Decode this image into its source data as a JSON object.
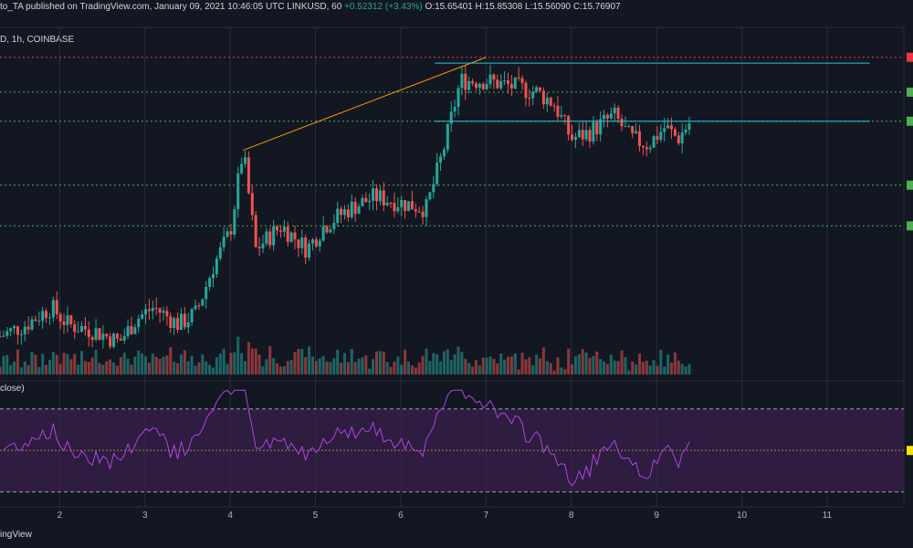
{
  "header": {
    "publish_text": "to_TA published on TradingView.com, January 09, 2021 10:46:05 UTC",
    "symbol": "LINKUSD, 60",
    "change": "+0.52312 (+3.43%)",
    "ohlc": {
      "o": "15.65401",
      "h": "15.85308",
      "l": "15.56090",
      "c": "15.76907"
    },
    "symbol_line": "D, 1h, COINBASE"
  },
  "rsi_label": "close)",
  "brand": "ingView",
  "colors": {
    "bg": "#131722",
    "up": "#26a69a",
    "down": "#ef5350",
    "grid": "#2a2e39",
    "green_level": "#4caf50",
    "red_level": "#f23645",
    "cyan": "#26c6da",
    "orange": "#ff9800",
    "rsi": "#b044e0",
    "rsi_band": "#3b1f4f"
  },
  "chart_data": {
    "type": "candlestick",
    "x_ticks": [
      "2",
      "3",
      "4",
      "5",
      "6",
      "7",
      "8",
      "9",
      "10",
      "11"
    ],
    "x_tick_days": [
      2,
      3,
      4,
      5,
      6,
      7,
      8,
      9,
      10,
      11
    ],
    "x_range": [
      1.3,
      11.9
    ],
    "price_ylim": [
      12.6,
      18.1
    ],
    "levels": [
      {
        "price": 17.9,
        "color": "red"
      },
      {
        "price": 17.3,
        "color": "green"
      },
      {
        "price": 16.8,
        "color": "green"
      },
      {
        "price": 15.7,
        "color": "green"
      },
      {
        "price": 15.0,
        "color": "green"
      }
    ],
    "key_prices": [
      [
        1.3,
        13.1
      ],
      [
        1.6,
        13.3
      ],
      [
        1.9,
        13.6
      ],
      [
        2.1,
        13.3
      ],
      [
        2.4,
        13.2
      ],
      [
        2.7,
        13.0
      ],
      [
        2.9,
        13.4
      ],
      [
        3.1,
        13.6
      ],
      [
        3.4,
        13.3
      ],
      [
        3.6,
        13.5
      ],
      [
        3.8,
        14.3
      ],
      [
        4.0,
        14.9
      ],
      [
        4.15,
        16.3
      ],
      [
        4.3,
        14.6
      ],
      [
        4.6,
        15.0
      ],
      [
        4.9,
        14.6
      ],
      [
        5.1,
        15.0
      ],
      [
        5.4,
        15.3
      ],
      [
        5.7,
        15.5
      ],
      [
        6.0,
        15.4
      ],
      [
        6.3,
        15.3
      ],
      [
        6.5,
        16.3
      ],
      [
        6.7,
        17.5
      ],
      [
        7.0,
        17.5
      ],
      [
        7.3,
        17.4
      ],
      [
        7.6,
        17.3
      ],
      [
        7.8,
        17.1
      ],
      [
        8.0,
        16.5
      ],
      [
        8.2,
        16.6
      ],
      [
        8.5,
        16.9
      ],
      [
        8.7,
        16.5
      ],
      [
        8.9,
        16.4
      ],
      [
        9.1,
        16.7
      ],
      [
        9.25,
        16.5
      ],
      [
        9.4,
        16.8
      ]
    ],
    "rsi_ylim": [
      25,
      80
    ],
    "rsi_bands": [
      70,
      30
    ],
    "rsi_mid": 50,
    "trendlines": [
      {
        "from": [
          4.15,
          16.3
        ],
        "to": [
          7.0,
          17.9
        ],
        "color": "orange"
      },
      {
        "from": [
          6.4,
          17.8
        ],
        "to": [
          11.5,
          17.8
        ],
        "color": "cyan"
      },
      {
        "from": [
          6.4,
          16.8
        ],
        "to": [
          11.5,
          16.8
        ],
        "color": "cyan"
      }
    ]
  }
}
